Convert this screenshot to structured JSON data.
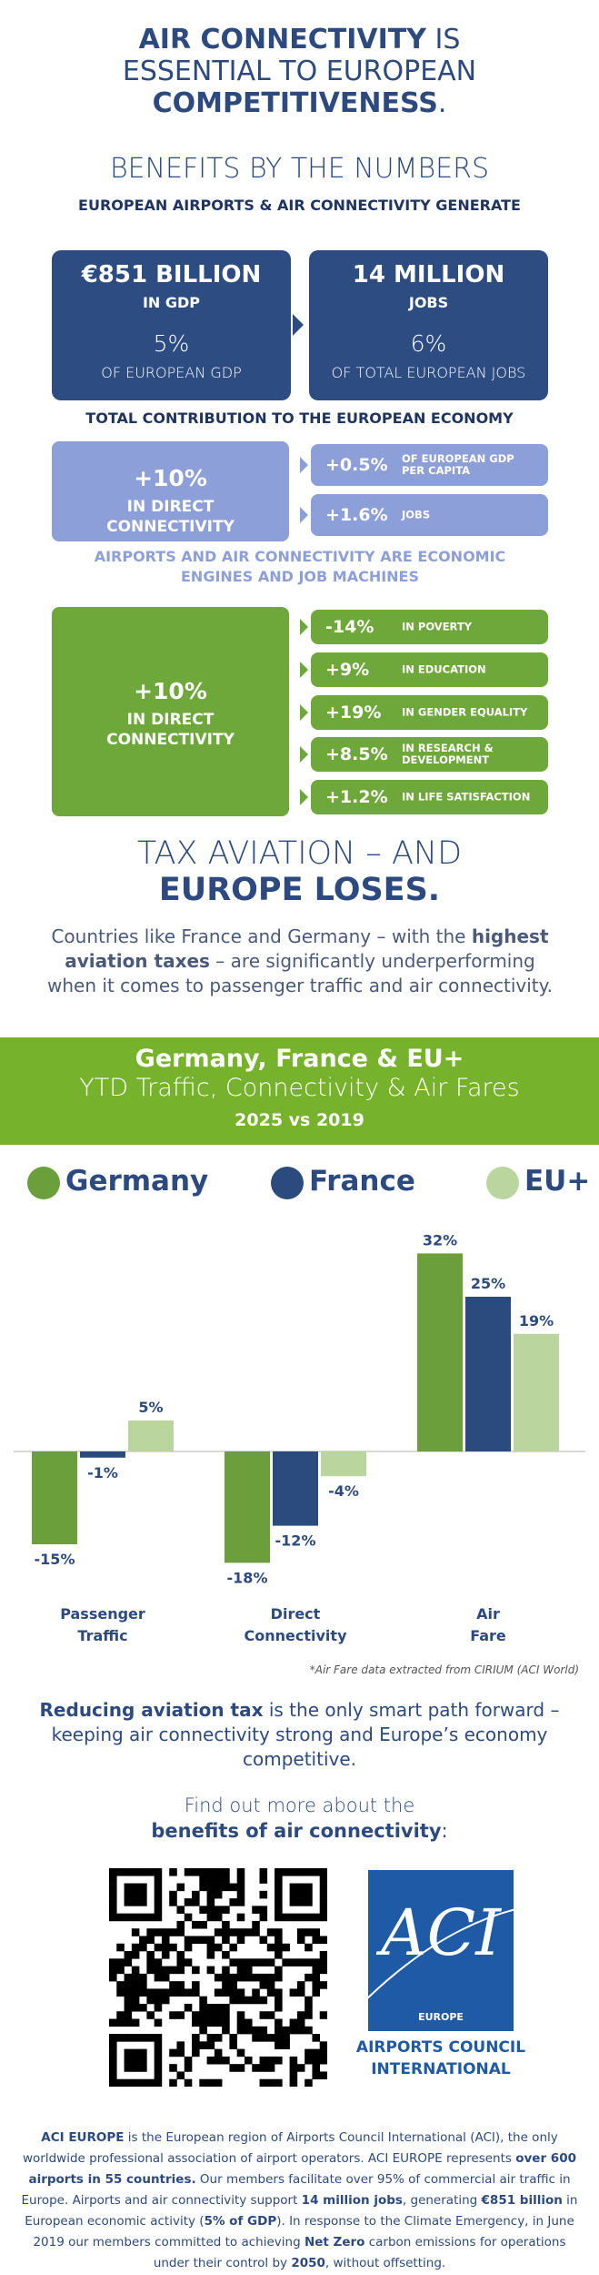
{
  "header": {
    "title": [
      [
        {
          "text": "AIR CONNECTIVITY",
          "bold": true
        },
        {
          "text": " IS"
        }
      ],
      [
        {
          "text": "ESSENTIAL TO EUROPEAN"
        }
      ],
      [
        {
          "text": "COMPETITIVENESS",
          "bold": true
        },
        {
          "text": "."
        }
      ]
    ],
    "heading": "BENEFITS BY THE NUMBERS",
    "subheading": "EUROPEAN AIRPORTS & AIR CONNECTIVITY GENERATE"
  },
  "economy": {
    "cards": [
      {
        "value": "€851 BILLION",
        "unit": "IN GDP",
        "share": "5%",
        "share_label": "OF EUROPEAN GDP"
      },
      {
        "value": "14 MILLION",
        "unit": "JOBS",
        "share": "6%",
        "share_label": "OF TOTAL EUROPEAN JOBS"
      }
    ],
    "caption": "TOTAL CONTRIBUTION TO THE EUROPEAN ECONOMY"
  },
  "connectivity": {
    "driver": {
      "value": "+10%",
      "label": "IN DIRECT CONNECTIVITY"
    },
    "effects": [
      {
        "value": "+0.5%",
        "label": "OF EUROPEAN GDP PER CAPITA"
      },
      {
        "value": "+1.6%",
        "label": "JOBS"
      }
    ],
    "caption": "AIRPORTS AND AIR CONNECTIVITY ARE ECONOMIC ENGINES AND JOB MACHINES"
  },
  "social": {
    "driver": {
      "value": "+10%",
      "label": "IN DIRECT CONNECTIVITY"
    },
    "effects": [
      {
        "value": "-14%",
        "label": "IN POVERTY"
      },
      {
        "value": "+9%",
        "label": "IN EDUCATION"
      },
      {
        "value": "+19%",
        "label": "IN GENDER EQUALITY"
      },
      {
        "value": "+8.5%",
        "label": "IN RESEARCH & DEVELOPMENT"
      },
      {
        "value": "+1.2%",
        "label": "IN LIFE SATISFACTION"
      }
    ]
  },
  "tax": {
    "heading": "TAX AVIATION – AND",
    "heading_bold": "EUROPE LOSES.",
    "text": [
      {
        "text": "Countries like France and Germany – with the "
      },
      {
        "text": "highest aviation taxes",
        "bold": true
      },
      {
        "text": " – are significantly underperforming when it comes to passenger traffic and air connectivity."
      }
    ]
  },
  "chart_data": {
    "type": "bar",
    "title": "Germany, France & EU+",
    "subtitle": "YTD Traffic, Connectivity & Air Fares",
    "period": "2025 vs 2019",
    "categories": [
      "Passenger Traffic",
      "Direct Connectivity",
      "Air Fare"
    ],
    "series": [
      {
        "name": "Germany",
        "color": "#6a9f3c",
        "values": [
          -15,
          -18,
          32
        ],
        "value_labels": [
          "-15%",
          "-18%",
          "32%"
        ]
      },
      {
        "name": "France",
        "color": "#2b4a7d",
        "values": [
          -1,
          -12,
          25
        ],
        "value_labels": [
          "-1%",
          "-12%",
          "25%"
        ]
      },
      {
        "name": "EU+",
        "color": "#bad59e",
        "values": [
          5,
          -4,
          19
        ],
        "value_labels": [
          "5%",
          "-4%",
          "19%"
        ]
      }
    ],
    "note": "*Air Fare data extracted from CIRIUM (ACI World)"
  },
  "conclusion": {
    "text": [
      {
        "text": "Reducing aviation tax",
        "bold": true
      },
      {
        "text": " is the only smart path forward – keeping air connectivity strong and Europe’s economy competitive."
      }
    ]
  },
  "more": {
    "intro": "Find out more about the",
    "link": [
      {
        "text": "benefits of air connectivity",
        "bold": true
      },
      {
        "text": ":"
      }
    ]
  },
  "logo": {
    "mark": "ACI",
    "region": "EUROPE",
    "name": [
      "AIRPORTS COUNCIL",
      "INTERNATIONAL"
    ]
  },
  "footer": {
    "text": [
      {
        "text": "ACI EUROPE",
        "bold": true
      },
      {
        "text": " is the European region of Airports Council International (ACI), the only worldwide professional association of airport operators. ACI EUROPE represents "
      },
      {
        "text": "over 600 airports in 55 countries.",
        "bold": true
      },
      {
        "text": " Our members facilitate over 95% of commercial air traffic in Europe. Airports and air connectivity support "
      },
      {
        "text": "14 million jobs",
        "bold": true
      },
      {
        "text": ", generating "
      },
      {
        "text": "€851 billion",
        "bold": true
      },
      {
        "text": " in European economic activity ("
      },
      {
        "text": "5% of GDP",
        "bold": true
      },
      {
        "text": "). In response to the Climate Emergency, in June 2019 our members committed to achieving "
      },
      {
        "text": "Net Zero",
        "bold": true
      },
      {
        "text": " carbon emissions for operations under their control by "
      },
      {
        "text": "2050",
        "bold": true
      },
      {
        "text": ", without offsetting."
      }
    ]
  }
}
